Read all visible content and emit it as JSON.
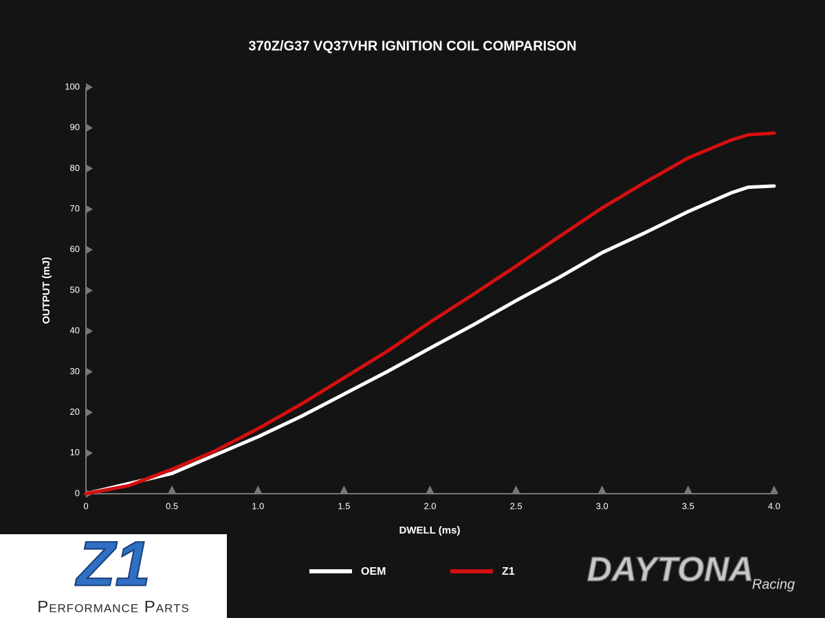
{
  "chart_data": {
    "type": "line",
    "title": "370Z/G37 VQ37VHR IGNITION COIL COMPARISON",
    "x_label": "DWELL (ms)",
    "y_label": "OUTPUT (mJ)",
    "x": [
      0,
      0.25,
      0.5,
      0.75,
      1.0,
      1.25,
      1.5,
      1.75,
      2.0,
      2.25,
      2.5,
      2.75,
      3.0,
      3.25,
      3.5,
      3.75,
      3.85,
      4.0
    ],
    "series": [
      {
        "name": "OEM",
        "color": "#ffffff",
        "values": [
          0,
          2.5,
          5,
          9.5,
          14,
          19,
          24.5,
          30,
          35.8,
          41.5,
          47.5,
          53.2,
          59.3,
          64.2,
          69.4,
          74,
          75.4,
          75.7
        ]
      },
      {
        "name": "Z1",
        "color": "#d40f0f",
        "values": [
          0,
          2,
          6,
          10.5,
          16,
          22,
          28.5,
          35,
          42.2,
          49,
          56,
          63.2,
          70.3,
          76.6,
          82.6,
          87,
          88.3,
          88.7
        ]
      }
    ],
    "xlim": [
      0,
      4
    ],
    "ylim": [
      0,
      100
    ],
    "xticks": [
      0,
      0.5,
      {
        "value": 1,
        "label": "1.0"
      },
      1.5,
      {
        "value": 2,
        "label": "2.0"
      },
      2.5,
      {
        "value": 3,
        "label": "3.0"
      },
      3.5,
      {
        "value": 4,
        "label": "4.0"
      }
    ],
    "yticks": [
      0,
      10,
      20,
      30,
      40,
      50,
      60,
      70,
      80,
      90,
      100
    ],
    "grid": false,
    "legend": "bottom"
  },
  "branding": {
    "left": "Z1",
    "left_sub": "Performance Parts",
    "right": "DAYTONA",
    "right_sub": "Racing"
  }
}
